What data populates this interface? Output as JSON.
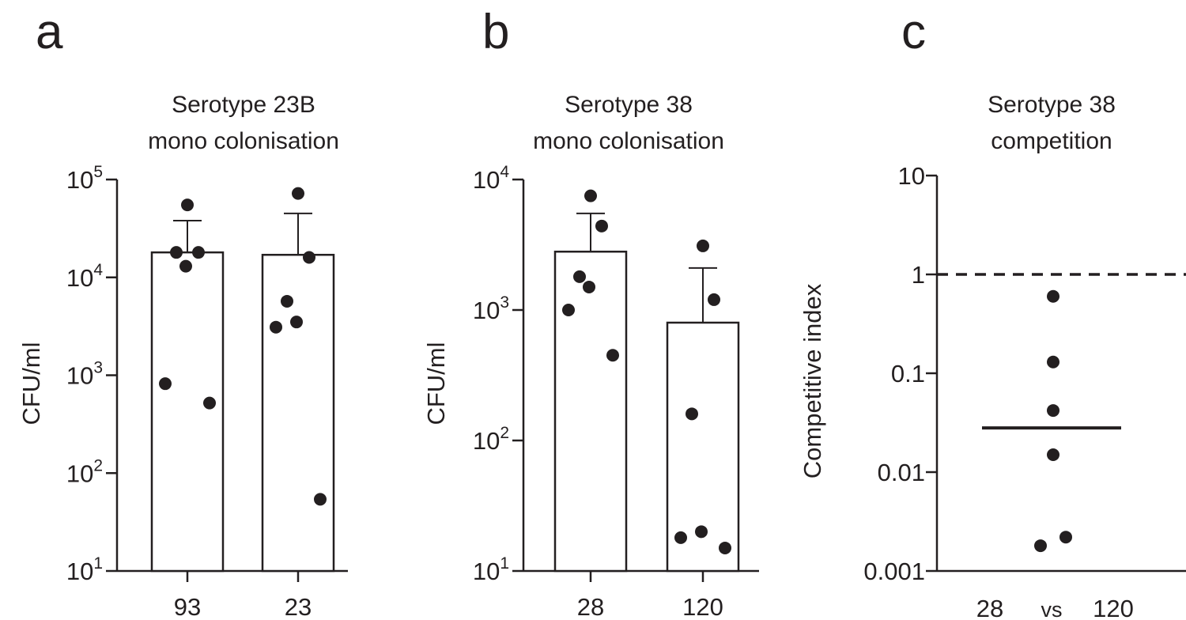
{
  "panels": [
    {
      "letter": "a",
      "title_line1": "Serotype 23B",
      "title_line2": "mono colonisation"
    },
    {
      "letter": "b",
      "title_line1": "Serotype 38",
      "title_line2": "mono colonisation"
    },
    {
      "letter": "c",
      "title_line1": "Serotype 38",
      "title_line2": "competition"
    }
  ],
  "chart_data": [
    {
      "type": "bar",
      "title": "Serotype 23B mono colonisation",
      "ylabel": "CFU/ml",
      "yscale": "log",
      "ylim": [
        10,
        100000
      ],
      "yticks": [
        {
          "base": "10",
          "exp": "1"
        },
        {
          "base": "10",
          "exp": "2"
        },
        {
          "base": "10",
          "exp": "3"
        },
        {
          "base": "10",
          "exp": "4"
        },
        {
          "base": "10",
          "exp": "5"
        }
      ],
      "categories": [
        "93",
        "23"
      ],
      "means": [
        18000,
        17000
      ],
      "error_upper": [
        38000,
        45000
      ],
      "points": [
        [
          55000,
          18000,
          18000,
          13000,
          820,
          520
        ],
        [
          72000,
          16000,
          5700,
          3500,
          3100,
          54
        ]
      ]
    },
    {
      "type": "bar",
      "title": "Serotype 38 mono colonisation",
      "ylabel": "CFU/ml",
      "yscale": "log",
      "ylim": [
        10,
        10000
      ],
      "yticks": [
        {
          "base": "10",
          "exp": "1"
        },
        {
          "base": "10",
          "exp": "2"
        },
        {
          "base": "10",
          "exp": "3"
        },
        {
          "base": "10",
          "exp": "4"
        }
      ],
      "categories": [
        "28",
        "120"
      ],
      "means": [
        2800,
        800
      ],
      "error_upper": [
        5500,
        2100
      ],
      "points": [
        [
          7500,
          4400,
          1800,
          1500,
          1000,
          450
        ],
        [
          3100,
          1200,
          160,
          20,
          18,
          15
        ]
      ]
    },
    {
      "type": "scatter",
      "title": "Serotype 38 competition",
      "ylabel": "Competitive index",
      "yscale": "log",
      "ylim": [
        0.001,
        10
      ],
      "yticks": [
        "0.001",
        "0.01",
        "0.1",
        "1",
        "10"
      ],
      "xlabel_parts": [
        "28",
        "vs",
        "120"
      ],
      "reference_line": 1,
      "median": 0.028,
      "points": [
        0.6,
        0.13,
        0.042,
        0.015,
        0.0022,
        0.0018
      ]
    }
  ]
}
